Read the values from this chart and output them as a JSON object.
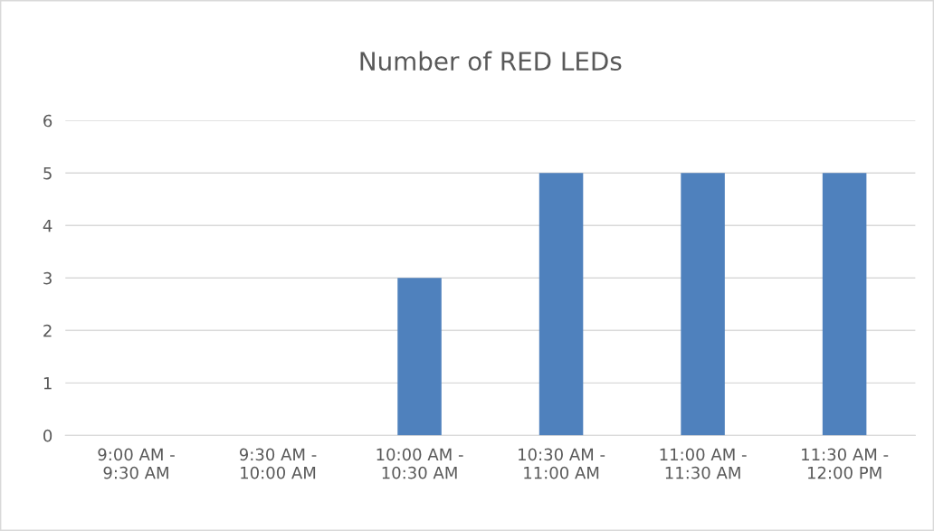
{
  "chart_data": {
    "type": "bar",
    "title": "Number of RED LEDs",
    "categories": [
      "9:00 AM -\n9:30 AM",
      "9:30 AM -\n10:00 AM",
      "10:00 AM -\n10:30 AM",
      "10:30 AM -\n11:00 AM",
      "11:00 AM -\n11:30 AM",
      "11:30 AM -\n12:00 PM"
    ],
    "values": [
      0,
      0,
      3,
      5,
      5,
      5
    ],
    "color": "#4f81bd",
    "ylim": [
      0,
      6
    ],
    "yticks": [
      0,
      1,
      2,
      3,
      4,
      5,
      6
    ],
    "grid": "y"
  }
}
